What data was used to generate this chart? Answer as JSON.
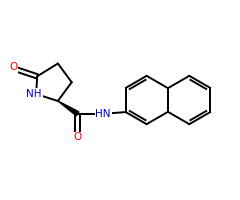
{
  "bg_color": "#ffffff",
  "bond_color": "#000000",
  "bond_width": 1.4,
  "atom_colors": {
    "O": "#ff0000",
    "N": "#0000cc",
    "C": "#000000"
  },
  "font_size": 7.5,
  "figsize": [
    2.4,
    2.0
  ],
  "dpi": 100,
  "xlim": [
    0,
    12
  ],
  "ylim": [
    0,
    10
  ]
}
